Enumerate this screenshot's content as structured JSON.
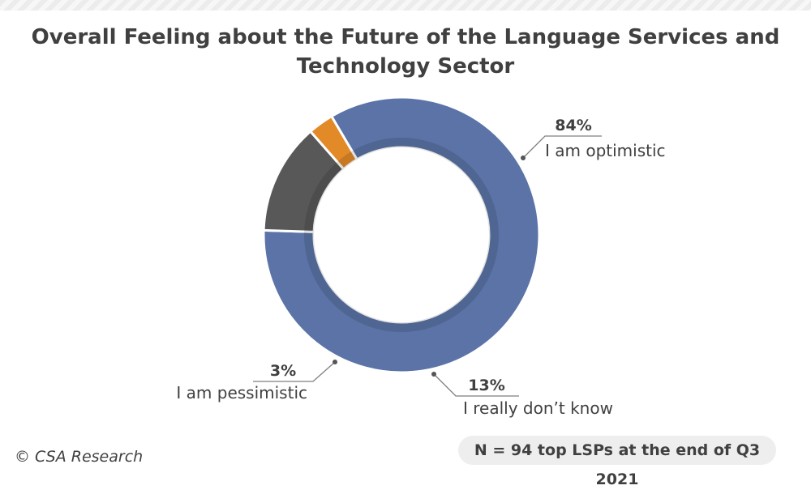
{
  "chart_data": {
    "type": "pie",
    "title": "Overall Feeling about the Future of the Language Services and Technology Sector",
    "categories": [
      "I am optimistic",
      "I really don’t know",
      "I am pessimistic"
    ],
    "values": [
      84,
      13,
      3
    ],
    "value_labels": [
      "84%",
      "13%",
      "3%"
    ],
    "colors": [
      "#5b73a7",
      "#585858",
      "#e28a27"
    ],
    "donut": true
  },
  "footer": {
    "copyright": "© CSA Research",
    "note": "N = 94 top LSPs at the end of Q3 2021"
  }
}
